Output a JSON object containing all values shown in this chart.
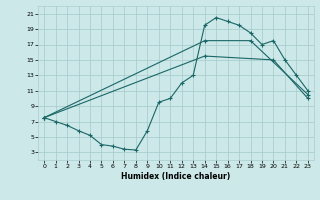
{
  "xlabel": "Humidex (Indice chaleur)",
  "background_color": "#cce8e8",
  "grid_color": "#aacece",
  "line_color": "#1a6666",
  "xlim": [
    -0.5,
    23.5
  ],
  "ylim": [
    2,
    22
  ],
  "xticks": [
    0,
    1,
    2,
    3,
    4,
    5,
    6,
    7,
    8,
    9,
    10,
    11,
    12,
    13,
    14,
    15,
    16,
    17,
    18,
    19,
    20,
    21,
    22,
    23
  ],
  "yticks": [
    3,
    5,
    7,
    9,
    11,
    13,
    15,
    17,
    19,
    21
  ],
  "line1_x": [
    0,
    1,
    2,
    3,
    4,
    5,
    6,
    7,
    8,
    9,
    10,
    11,
    12,
    13,
    14,
    15,
    16,
    17,
    18,
    19,
    20,
    21,
    22,
    23
  ],
  "line1_y": [
    7.5,
    7.0,
    6.5,
    5.8,
    5.2,
    4.0,
    3.8,
    3.4,
    3.3,
    5.8,
    9.5,
    10.0,
    12.0,
    13.0,
    19.5,
    20.5,
    20.0,
    19.5,
    18.5,
    17.0,
    17.5,
    15.0,
    13.0,
    11.0
  ],
  "line2_x": [
    0,
    14,
    18,
    23
  ],
  "line2_y": [
    7.5,
    17.5,
    17.5,
    10.5
  ],
  "line3_x": [
    0,
    14,
    20,
    23
  ],
  "line3_y": [
    7.5,
    15.5,
    15.0,
    10.0
  ]
}
